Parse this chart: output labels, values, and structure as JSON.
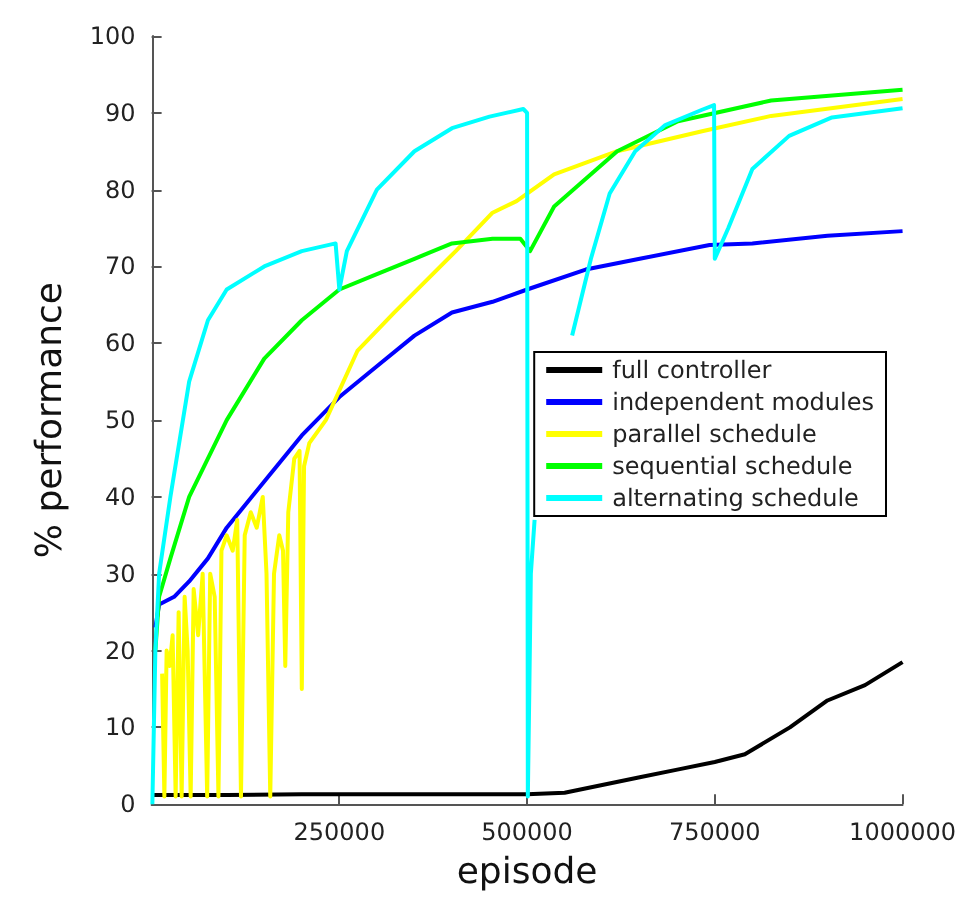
{
  "chart_data": {
    "type": "line",
    "xlabel": "episode",
    "ylabel": "% performance",
    "xlim": [
      0,
      1000000
    ],
    "xticks": [
      250000,
      500000,
      750000,
      1000000
    ],
    "ylim": [
      0,
      100
    ],
    "yticks": [
      0,
      10,
      20,
      30,
      40,
      50,
      60,
      70,
      80,
      90,
      100
    ],
    "grid": false,
    "legend": "right",
    "marker": "none",
    "line_style": "solid",
    "series": [
      {
        "name": "full controller",
        "color": "#000000",
        "x": [
          0,
          100000,
          200000,
          300000,
          400000,
          500000,
          550000,
          600000,
          650000,
          700000,
          750000,
          790000,
          850000,
          900000,
          950000,
          1000000
        ],
        "values": [
          1.2,
          1.2,
          1.3,
          1.3,
          1.3,
          1.3,
          1.5,
          2.5,
          3.5,
          4.5,
          5.5,
          6.5,
          10,
          13.5,
          15.5,
          18.5
        ]
      },
      {
        "name": "independent modules",
        "color": "#0000ff",
        "x": [
          5000,
          10000,
          30000,
          50000,
          75000,
          100000,
          150000,
          200000,
          250000,
          300000,
          350000,
          400000,
          454000,
          500000,
          578000,
          650000,
          743000,
          800000,
          900000,
          1000000
        ],
        "values": [
          23,
          26,
          27,
          29,
          32,
          36,
          42,
          48,
          53,
          57,
          61,
          64,
          65.4,
          67,
          69.6,
          71,
          72.8,
          73,
          74,
          74.6
        ]
      },
      {
        "name": "parallel schedule",
        "color": "#ffff00",
        "x": [
          14000,
          17000,
          20000,
          24000,
          28000,
          32000,
          36000,
          40000,
          44000,
          48000,
          52000,
          56000,
          62000,
          68000,
          74000,
          78000,
          84000,
          89000,
          93000,
          100000,
          108000,
          114000,
          119000,
          124000,
          132000,
          140000,
          148000,
          153000,
          158000,
          163000,
          170000,
          175000,
          178000,
          182000,
          190000,
          197000,
          200000,
          203000,
          210000,
          232000,
          274000,
          323000,
          405000,
          454000,
          486000,
          536000,
          620000,
          733000,
          825000,
          1000000
        ],
        "values": [
          17,
          1,
          20,
          18,
          22,
          1,
          25,
          1,
          27,
          20,
          1,
          28,
          22,
          30,
          1,
          30,
          27,
          1,
          33,
          35,
          33,
          37,
          1,
          35,
          38,
          36,
          40,
          30,
          1,
          30,
          35,
          33,
          18,
          38,
          45,
          46,
          15,
          44,
          47,
          50,
          59,
          64,
          72,
          77,
          78.5,
          82,
          85,
          87.6,
          89.6,
          91.8
        ]
      },
      {
        "name": "sequential schedule",
        "color": "#00ff00",
        "x": [
          5000,
          10000,
          25000,
          50000,
          100000,
          150000,
          200000,
          250000,
          300000,
          350000,
          400000,
          454000,
          491000,
          504000,
          536000,
          620000,
          701000,
          825000,
          1000000
        ],
        "values": [
          20,
          27,
          32,
          40,
          50,
          58,
          63,
          67,
          69,
          71,
          73,
          73.6,
          73.6,
          72,
          77.8,
          85,
          88.9,
          91.6,
          93
        ]
      },
      {
        "name": "alternating schedule",
        "color": "#00ffff",
        "x": [
          1000,
          5000,
          10000,
          25000,
          50000,
          75000,
          100000,
          150000,
          200000,
          245000,
          250000,
          260000,
          300000,
          350000,
          400000,
          450000,
          495000,
          500000,
          501000,
          503000,
          505000,
          510000,
          520000,
          535000,
          560000,
          585000,
          610000,
          644000,
          684000,
          733000,
          749000,
          750000,
          768000,
          800000,
          849000,
          906000,
          1000000
        ],
        "values": [
          0,
          20,
          30,
          40,
          55,
          63,
          67,
          70,
          72,
          73,
          67,
          72,
          80,
          85,
          88,
          89.5,
          90.5,
          90,
          1,
          15,
          30,
          37,
          null,
          null,
          61,
          71,
          79.5,
          85,
          88.4,
          90.4,
          91,
          71,
          75,
          82.7,
          87,
          89.4,
          90.6
        ]
      }
    ]
  }
}
